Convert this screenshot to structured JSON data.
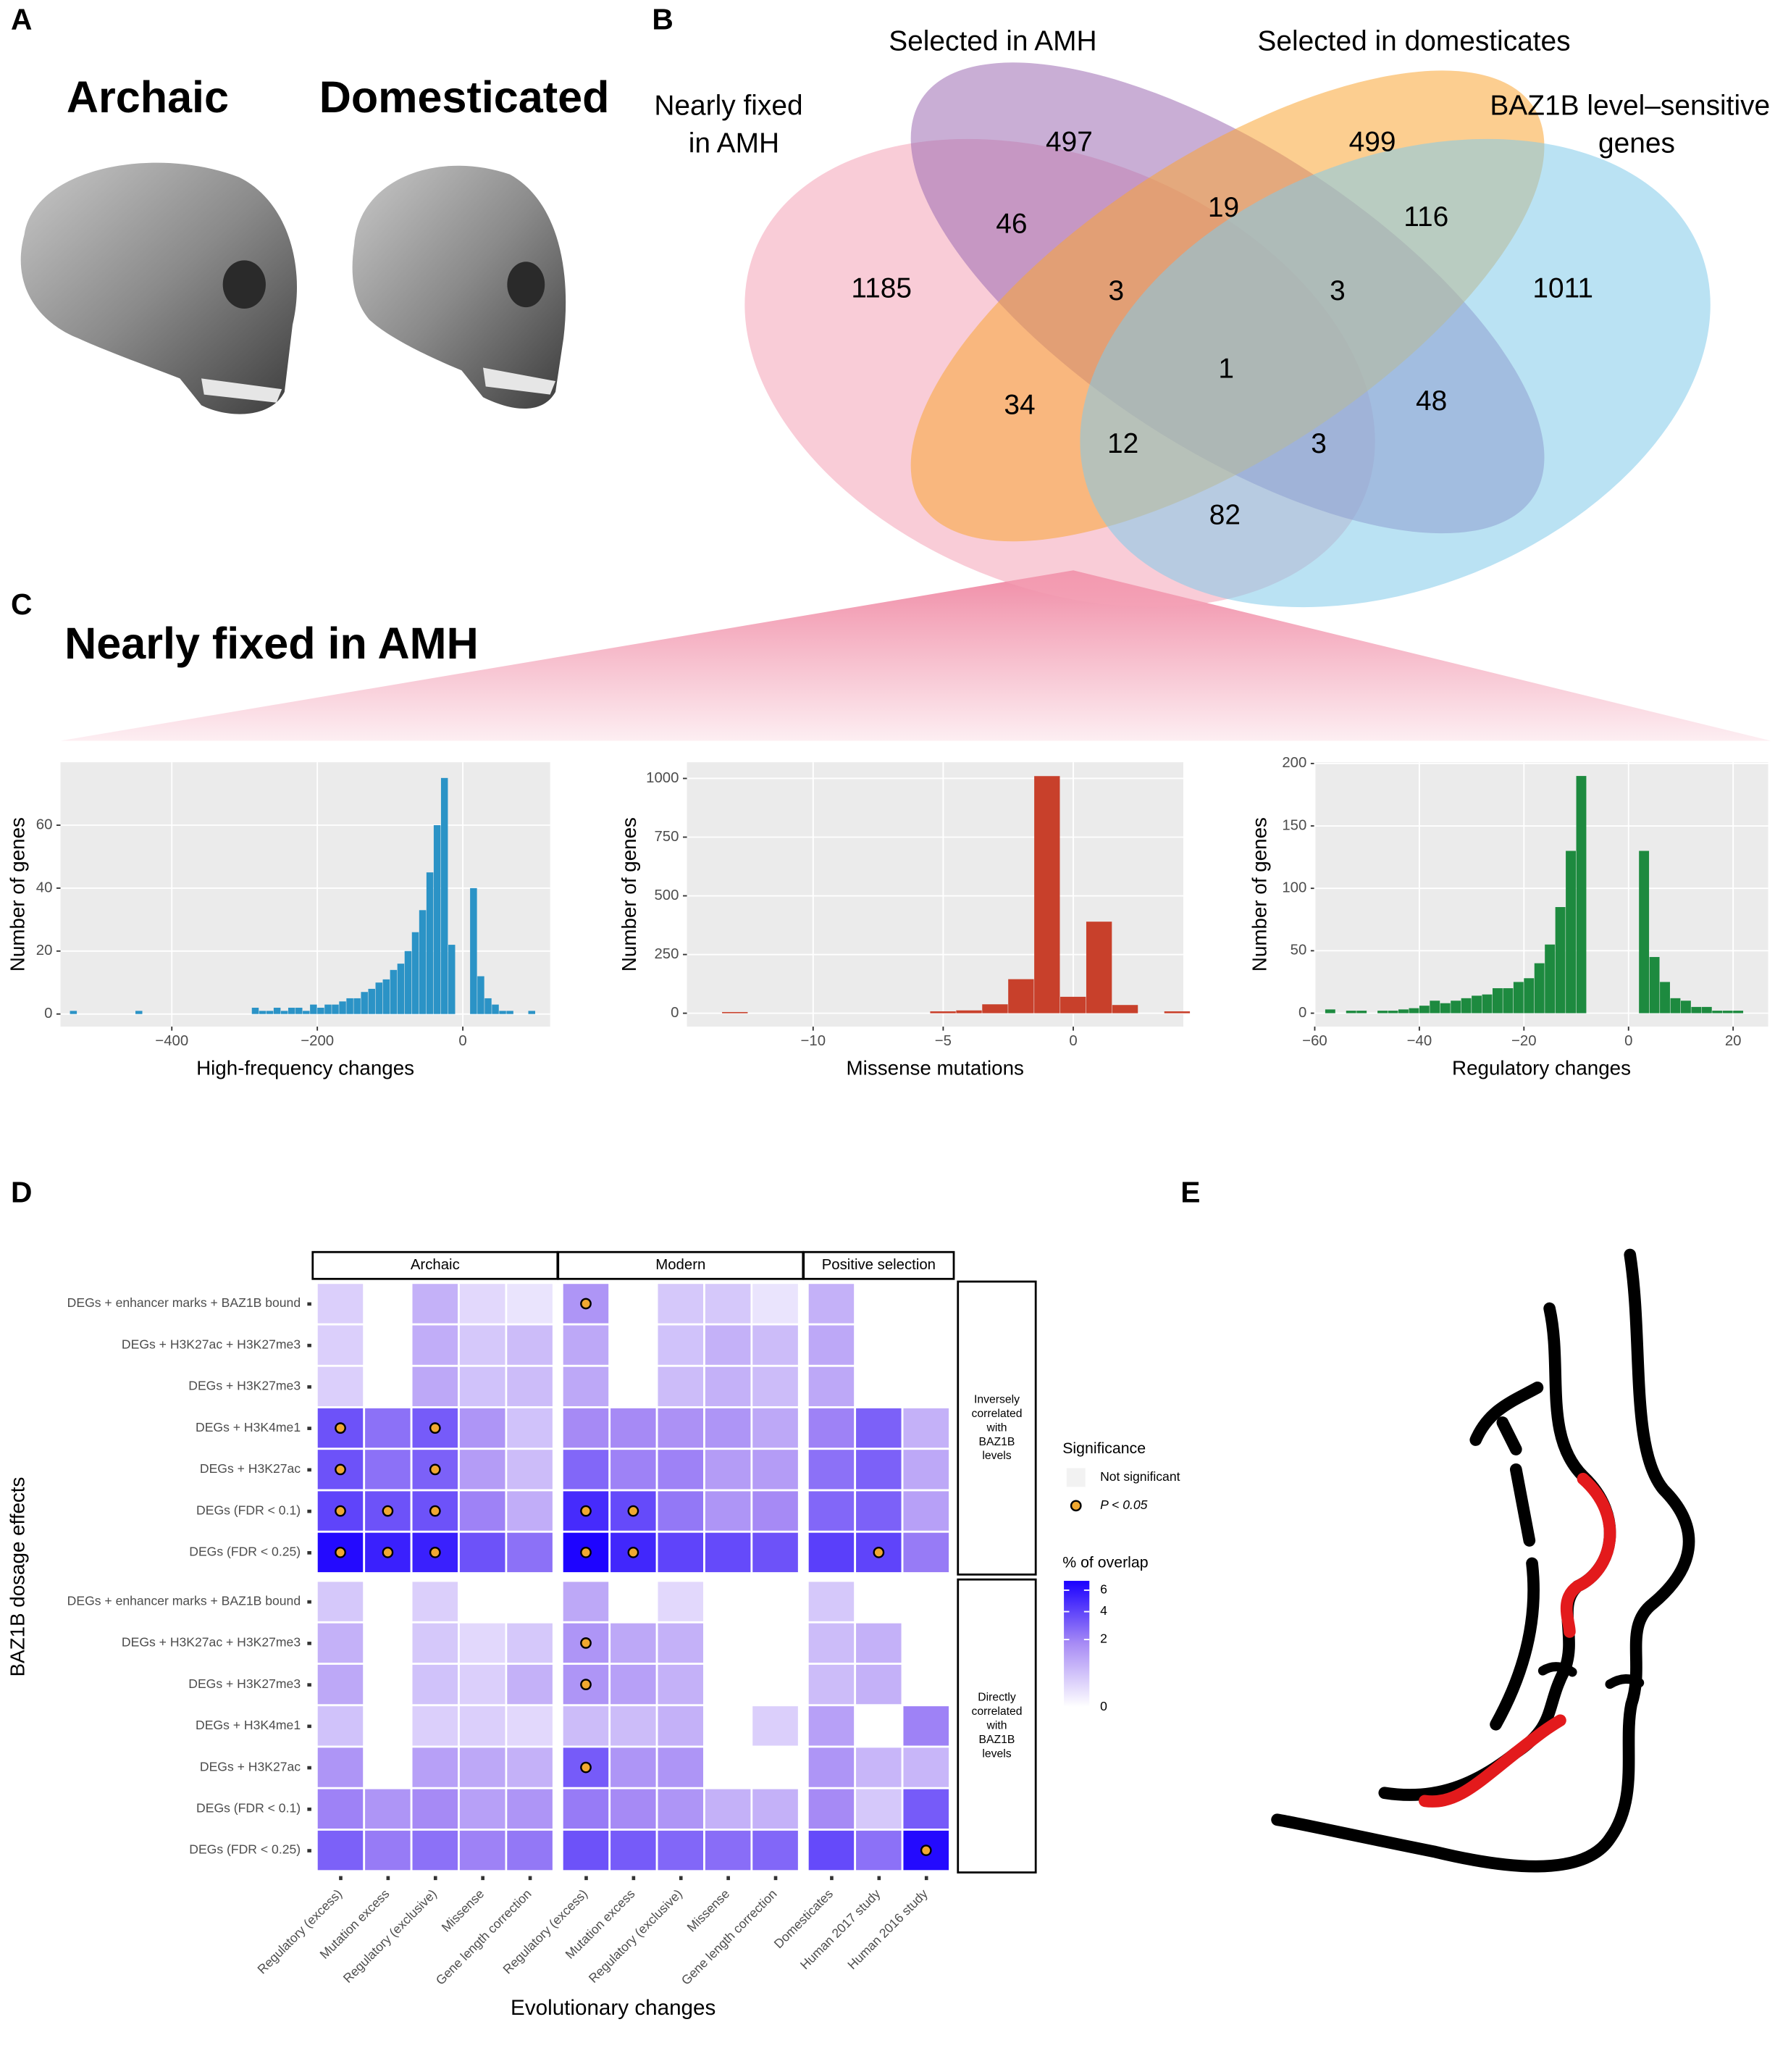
{
  "panel_labels": [
    "A",
    "B",
    "C",
    "D",
    "E"
  ],
  "panel_a": {
    "titles": [
      "Archaic",
      "Domesticated"
    ]
  },
  "venn": {
    "sets": [
      {
        "name_lines": [
          "Nearly fixed",
          "in AMH"
        ],
        "color": "#f4a3b7"
      },
      {
        "name_lines": [
          "Selected in AMH"
        ],
        "color": "#9c6cb2"
      },
      {
        "name_lines": [
          "Selected in domesticates"
        ],
        "color": "#f9a535"
      },
      {
        "name_lines": [
          "BAZ1B level–sensitive",
          "genes"
        ],
        "color": "#82cbea"
      }
    ],
    "region_counts": [
      497,
      499,
      46,
      19,
      116,
      1185,
      3,
      3,
      1011,
      1,
      34,
      12,
      3,
      48,
      82
    ]
  },
  "panel_c_title": "Nearly fixed in AMH",
  "chart_data": [
    {
      "type": "histogram",
      "xlabel": "High-frequency changes",
      "ylabel": "Number of genes",
      "color": "#2b93c6",
      "bins": [
        -540,
        -530,
        -520,
        -510,
        -500,
        -490,
        -480,
        -470,
        -460,
        -450,
        -440,
        -430,
        -420,
        -410,
        -400,
        -390,
        -380,
        -370,
        -360,
        -350,
        -340,
        -330,
        -320,
        -310,
        -300,
        -290,
        -280,
        -270,
        -260,
        -250,
        -240,
        -230,
        -220,
        -210,
        -200,
        -190,
        -180,
        -170,
        -160,
        -150,
        -140,
        -130,
        -120,
        -110,
        -100,
        -90,
        -80,
        -70,
        -60,
        -50,
        -40,
        -30,
        -20,
        -10,
        0,
        10,
        20,
        30,
        40,
        50,
        60,
        70,
        80,
        90,
        100
      ],
      "values": [
        1,
        0,
        0,
        0,
        0,
        0,
        0,
        0,
        0,
        1,
        0,
        0,
        0,
        0,
        0,
        0,
        0,
        0,
        0,
        0,
        0,
        0,
        0,
        0,
        0,
        2,
        1,
        1,
        2,
        1,
        2,
        2,
        1,
        3,
        2,
        3,
        3,
        4,
        5,
        5,
        7,
        8,
        10,
        11,
        14,
        16,
        20,
        26,
        33,
        45,
        60,
        75,
        22,
        0,
        0,
        40,
        12,
        5,
        3,
        1,
        1,
        0,
        0,
        1
      ],
      "xlim": [
        -553,
        120
      ],
      "ylim": [
        -4,
        80
      ],
      "xticks": [
        {
          "value": -400,
          "label": "−400"
        },
        {
          "value": -200,
          "label": "−200"
        },
        0
      ],
      "yticks": [
        0,
        20,
        40,
        60
      ],
      "grid": true
    },
    {
      "type": "histogram",
      "xlabel": "Missense mutations",
      "ylabel": "Number of genes",
      "color": "#c8402b",
      "bins": [
        -13.5,
        -12.5,
        -11.5,
        -10.5,
        -9.5,
        -8.5,
        -7.5,
        -6.5,
        -5.5,
        -4.5,
        -3.5,
        -2.5,
        -1.5,
        -0.5,
        0.5,
        1.5,
        2.5,
        3.5,
        4.5
      ],
      "values": [
        5,
        0,
        0,
        0,
        0,
        0,
        0,
        0,
        8,
        12,
        38,
        145,
        1010,
        70,
        390,
        35,
        0,
        8
      ],
      "xlim": [
        -14.85,
        4.23
      ],
      "ylim": [
        -57,
        1069
      ],
      "xticks": [
        {
          "value": -10,
          "label": "−10"
        },
        {
          "value": -5,
          "label": "−5"
        },
        0
      ],
      "yticks": [
        0,
        250,
        500,
        750,
        1000
      ],
      "grid": true
    },
    {
      "type": "histogram",
      "xlabel": "Regulatory changes",
      "ylabel": "Number of genes",
      "color": "#1d8a3f",
      "bins": [
        -58,
        -56,
        -54,
        -52,
        -50,
        -48,
        -46,
        -44,
        -42,
        -40,
        -38,
        -36,
        -34,
        -32,
        -30,
        -28,
        -26,
        -24,
        -22,
        -20,
        -18,
        -16,
        -14,
        -12,
        -10,
        -8,
        -6,
        -4,
        -2,
        0,
        2,
        4,
        6,
        8,
        10,
        12,
        14,
        16,
        18,
        20,
        22
      ],
      "values": [
        3,
        0,
        2,
        2,
        0,
        2,
        2,
        3,
        4,
        6,
        10,
        8,
        10,
        12,
        14,
        15,
        20,
        20,
        25,
        28,
        40,
        55,
        85,
        130,
        190,
        0,
        0,
        0,
        0,
        0,
        130,
        45,
        25,
        12,
        10,
        5,
        5,
        2,
        2,
        2
      ],
      "xlim": [
        -60,
        26.7
      ],
      "ylim": [
        -10.75,
        201
      ],
      "xticks": [
        {
          "value": -60,
          "label": "−60"
        },
        {
          "value": -40,
          "label": "−40"
        },
        {
          "value": -20,
          "label": "−20"
        },
        0,
        20
      ],
      "yticks": [
        0,
        50,
        100,
        150,
        200
      ],
      "grid": true
    },
    {
      "type": "heatmap",
      "xlabel": "Evolutionary changes",
      "ylabel": "BAZ1B dosage effects",
      "column_groups": [
        {
          "name": "Archaic",
          "columns": [
            "Regulatory (excess)",
            "Mutation excess",
            "Regulatory (exclusive)",
            "Missense",
            "Gene length correction"
          ]
        },
        {
          "name": "Modern",
          "columns": [
            "Regulatory (excess)",
            "Mutation excess",
            "Regulatory (exclusive)",
            "Missense",
            "Gene length correction"
          ]
        },
        {
          "name": "Positive selection",
          "columns": [
            "Domesticates",
            "Human 2017 study",
            "Human 2016 study"
          ]
        }
      ],
      "row_groups": [
        {
          "name_lines": [
            "Inversely",
            "correlated",
            "with",
            "BAZ1B",
            "levels"
          ],
          "rows": [
            "DEGs + enhancer marks + BAZ1B bound",
            "DEGs + H3K27ac + H3K27me3",
            "DEGs + H3K27me3",
            "DEGs + H3K4me1",
            "DEGs + H3K27ac",
            "DEGs (FDR < 0.1)",
            "DEGs (FDR < 0.25)"
          ],
          "values": [
            [
              0.3,
              0,
              0.8,
              0.2,
              0.1,
              1.5,
              0,
              0.4,
              0.4,
              0.1,
              0.8,
              0,
              0
            ],
            [
              0.3,
              0,
              0.9,
              0.4,
              0.6,
              1.0,
              0,
              0.5,
              0.8,
              0.6,
              1.0,
              0,
              0
            ],
            [
              0.3,
              0,
              1.0,
              0.5,
              0.6,
              1.0,
              0,
              0.6,
              0.8,
              0.6,
              1.0,
              0,
              0
            ],
            [
              3.5,
              2.5,
              3.2,
              1.5,
              0.5,
              1.8,
              1.8,
              1.6,
              1.5,
              1.0,
              2.0,
              3.0,
              0.8
            ],
            [
              3.5,
              2.5,
              3.0,
              1.3,
              0.6,
              2.8,
              2.0,
              2.0,
              1.3,
              1.3,
              2.5,
              3.0,
              1.0
            ],
            [
              4.0,
              3.5,
              3.5,
              2.0,
              0.9,
              5.0,
              3.8,
              2.3,
              1.5,
              1.8,
              2.8,
              3.0,
              1.2
            ],
            [
              6.5,
              5.5,
              5.5,
              3.5,
              2.5,
              6.8,
              5.2,
              4.0,
              3.8,
              3.5,
              4.2,
              4.0,
              2.2
            ]
          ],
          "significant": [
            [
              false,
              false,
              false,
              false,
              false,
              true,
              false,
              false,
              false,
              false,
              false,
              false,
              false
            ],
            [
              false,
              false,
              false,
              false,
              false,
              false,
              false,
              false,
              false,
              false,
              false,
              false,
              false
            ],
            [
              false,
              false,
              false,
              false,
              false,
              false,
              false,
              false,
              false,
              false,
              false,
              false,
              false
            ],
            [
              true,
              false,
              true,
              false,
              false,
              false,
              false,
              false,
              false,
              false,
              false,
              false,
              false
            ],
            [
              true,
              false,
              true,
              false,
              false,
              false,
              false,
              false,
              false,
              false,
              false,
              false,
              false
            ],
            [
              true,
              true,
              true,
              false,
              false,
              true,
              true,
              false,
              false,
              false,
              false,
              false,
              false
            ],
            [
              true,
              true,
              true,
              false,
              false,
              true,
              true,
              false,
              false,
              false,
              false,
              true,
              false
            ]
          ]
        },
        {
          "name_lines": [
            "Directly",
            "correlated",
            "with",
            "BAZ1B",
            "levels"
          ],
          "rows": [
            "DEGs + enhancer marks + BAZ1B bound",
            "DEGs + H3K27ac + H3K27me3",
            "DEGs + H3K27me3",
            "DEGs + H3K4me1",
            "DEGs + H3K27ac",
            "DEGs (FDR < 0.1)",
            "DEGs (FDR < 0.25)"
          ],
          "values": [
            [
              0.4,
              0,
              0.3,
              0,
              0,
              1.0,
              0,
              0.2,
              0,
              0,
              0.4,
              0,
              0
            ],
            [
              0.8,
              0,
              0.4,
              0.2,
              0.4,
              1.5,
              1.0,
              0.8,
              0,
              0,
              0.6,
              0.8,
              0
            ],
            [
              1.0,
              0,
              0.5,
              0.3,
              0.8,
              1.5,
              1.2,
              0.8,
              0,
              0,
              0.6,
              0.8,
              0
            ],
            [
              0.5,
              0,
              0.3,
              0.3,
              0.2,
              0.6,
              0.6,
              0.8,
              0,
              0.3,
              1.2,
              0,
              2.0
            ],
            [
              1.5,
              0,
              1.2,
              1.0,
              0.8,
              3.2,
              1.5,
              1.5,
              0,
              0,
              1.5,
              0.7,
              0.7
            ],
            [
              2.0,
              1.5,
              1.8,
              1.2,
              1.5,
              2.2,
              1.8,
              1.5,
              0.8,
              0.8,
              1.8,
              0.4,
              3.2
            ],
            [
              3.0,
              2.2,
              2.5,
              2.0,
              2.3,
              3.5,
              3.2,
              2.8,
              2.6,
              2.8,
              3.8,
              2.5,
              6.5
            ]
          ],
          "significant": [
            [
              false,
              false,
              false,
              false,
              false,
              false,
              false,
              false,
              false,
              false,
              false,
              false,
              false
            ],
            [
              false,
              false,
              false,
              false,
              false,
              true,
              false,
              false,
              false,
              false,
              false,
              false,
              false
            ],
            [
              false,
              false,
              false,
              false,
              false,
              true,
              false,
              false,
              false,
              false,
              false,
              false,
              false
            ],
            [
              false,
              false,
              false,
              false,
              false,
              false,
              false,
              false,
              false,
              false,
              false,
              false,
              false
            ],
            [
              false,
              false,
              false,
              false,
              false,
              true,
              false,
              false,
              false,
              false,
              false,
              false,
              false
            ],
            [
              false,
              false,
              false,
              false,
              false,
              false,
              false,
              false,
              false,
              false,
              false,
              false,
              false
            ],
            [
              false,
              false,
              false,
              false,
              false,
              false,
              false,
              false,
              false,
              false,
              false,
              false,
              true
            ]
          ]
        }
      ],
      "legend": {
        "significance_title": "Significance",
        "not_significant": "Not significant",
        "significant": "P < 0.05",
        "fill_title": "% of overlap",
        "clim": [
          0,
          7
        ],
        "ticks": [
          0,
          2,
          4,
          6
        ],
        "scale": "sqrt",
        "colors": [
          "#ffffff",
          "#a88cf5",
          "#1a00ff"
        ],
        "dot_color": "#f0a830"
      }
    }
  ]
}
